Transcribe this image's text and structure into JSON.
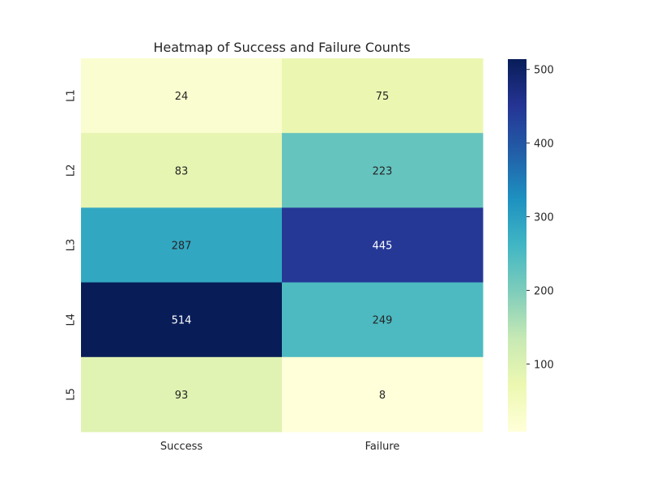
{
  "chart_data": {
    "type": "heatmap",
    "title": "Heatmap of Success and Failure Counts",
    "xlabel": "",
    "ylabel": "",
    "columns": [
      "Success",
      "Failure"
    ],
    "rows": [
      "L1",
      "L2",
      "L3",
      "L4",
      "L5"
    ],
    "values": [
      [
        24,
        75
      ],
      [
        83,
        223
      ],
      [
        287,
        445
      ],
      [
        514,
        249
      ],
      [
        93,
        8
      ]
    ],
    "colormap": "YlGnBu",
    "colorbar": {
      "min": 8,
      "max": 514,
      "ticks": [
        100,
        200,
        300,
        400,
        500
      ]
    },
    "annotations": true,
    "grid": false
  }
}
